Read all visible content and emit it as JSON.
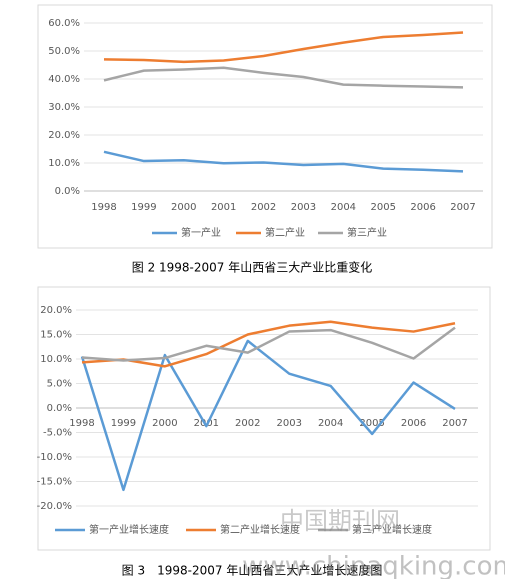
{
  "chart_data": [
    {
      "type": "line",
      "caption": "图 2 1998-2007 年山西省三大产业比重变化",
      "categories": [
        "1998",
        "1999",
        "2000",
        "2001",
        "2002",
        "2003",
        "2004",
        "2005",
        "2006",
        "2007"
      ],
      "series": [
        {
          "name": "第一产业",
          "color": "#5b9bd5",
          "values": [
            14.0,
            10.7,
            11.0,
            9.9,
            10.2,
            9.3,
            9.7,
            8.0,
            7.6,
            7.0
          ]
        },
        {
          "name": "第二产业",
          "color": "#ed7d31",
          "values": [
            47.0,
            46.8,
            46.1,
            46.6,
            48.2,
            50.7,
            53.0,
            55.0,
            55.7,
            56.6
          ]
        },
        {
          "name": "第三产业",
          "color": "#a5a5a5",
          "values": [
            39.5,
            43.0,
            43.4,
            44.0,
            42.2,
            40.7,
            38.0,
            37.6,
            37.3,
            37.0
          ]
        }
      ],
      "ylim": [
        0,
        60
      ],
      "yticks": [
        {
          "value": 0,
          "label": "0.0%"
        },
        {
          "value": 10,
          "label": "10.0%"
        },
        {
          "value": 20,
          "label": "20.0%"
        },
        {
          "value": 30,
          "label": "30.0%"
        },
        {
          "value": 40,
          "label": "40.0%"
        },
        {
          "value": 50,
          "label": "50.0%"
        },
        {
          "value": 60,
          "label": "60.0%"
        }
      ],
      "grid": true,
      "legend": "bottom"
    },
    {
      "type": "line",
      "caption": "图 3　1998-2007 年山西省三大产业增长速度图",
      "categories": [
        "1998",
        "1999",
        "2000",
        "2001",
        "2002",
        "2003",
        "2004",
        "2005",
        "2006",
        "2007"
      ],
      "series": [
        {
          "name": "第一产业增长速度",
          "color": "#5b9bd5",
          "values": [
            10.5,
            -16.7,
            10.8,
            -3.7,
            13.7,
            7.0,
            4.5,
            -5.3,
            5.2,
            -0.2
          ]
        },
        {
          "name": "第二产业增长速度",
          "color": "#ed7d31",
          "values": [
            9.3,
            9.9,
            8.5,
            11.0,
            15.0,
            16.8,
            17.6,
            16.4,
            15.6,
            17.3
          ]
        },
        {
          "name": "第三产业增长速度",
          "color": "#a5a5a5",
          "values": [
            10.3,
            9.7,
            10.2,
            12.7,
            11.3,
            15.6,
            15.9,
            13.3,
            10.1,
            16.4
          ]
        }
      ],
      "ylim": [
        -20,
        20
      ],
      "yticks": [
        {
          "value": -20,
          "label": "-20.0%"
        },
        {
          "value": -15,
          "label": "-15.0%"
        },
        {
          "value": -10,
          "label": "-10.0%"
        },
        {
          "value": -5,
          "label": "-5.0%"
        },
        {
          "value": 0,
          "label": "0.0%"
        },
        {
          "value": 5,
          "label": "5.0%"
        },
        {
          "value": 10,
          "label": "10.0%"
        },
        {
          "value": 15,
          "label": "15.0%"
        },
        {
          "value": 20,
          "label": "20.0%"
        }
      ],
      "grid": true,
      "legend": "bottom"
    }
  ],
  "watermark": {
    "name": "中国期刊网",
    "url": "www.chinaqking.com"
  }
}
